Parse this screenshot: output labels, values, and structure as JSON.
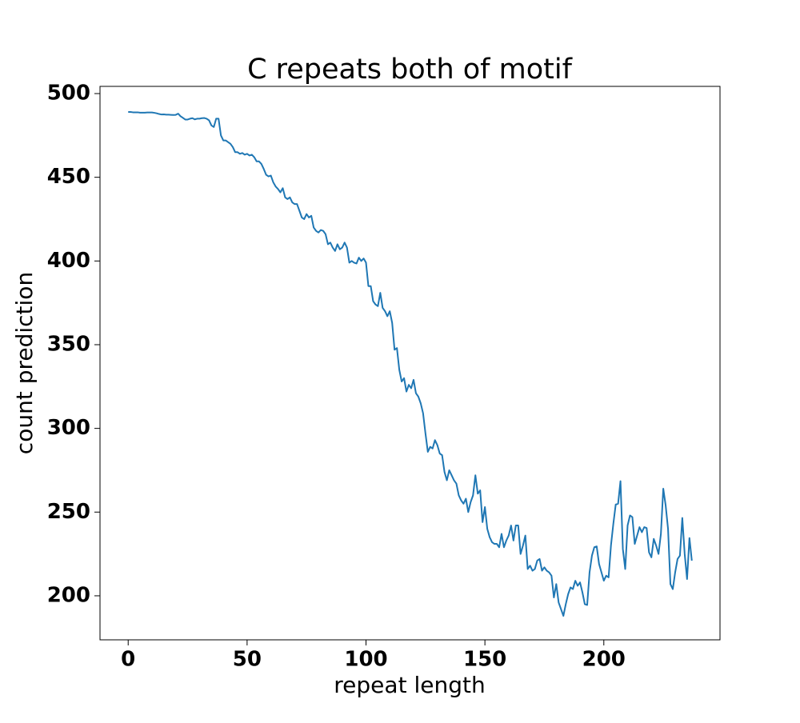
{
  "chart_data": {
    "type": "line",
    "title": "C repeats both of motif",
    "xlabel": "repeat length",
    "ylabel": "count prediction",
    "color": "#1f77b4",
    "x": [
      0,
      1,
      2,
      3,
      4,
      5,
      6,
      7,
      8,
      9,
      10,
      11,
      12,
      13,
      14,
      15,
      16,
      17,
      18,
      19,
      20,
      21,
      22,
      23,
      24,
      25,
      26,
      27,
      28,
      29,
      30,
      31,
      32,
      33,
      34,
      35,
      36,
      37,
      38,
      39,
      40,
      41,
      42,
      43,
      44,
      45,
      46,
      47,
      48,
      49,
      50,
      51,
      52,
      53,
      54,
      55,
      56,
      57,
      58,
      59,
      60,
      61,
      62,
      63,
      64,
      65,
      66,
      67,
      68,
      69,
      70,
      71,
      72,
      73,
      74,
      75,
      76,
      77,
      78,
      79,
      80,
      81,
      82,
      83,
      84,
      85,
      86,
      87,
      88,
      89,
      90,
      91,
      92,
      93,
      94,
      95,
      96,
      97,
      98,
      99,
      100,
      101,
      102,
      103,
      104,
      105,
      106,
      107,
      108,
      109,
      110,
      111,
      112,
      113,
      114,
      115,
      116,
      117,
      118,
      119,
      120,
      121,
      122,
      123,
      124,
      125,
      126,
      127,
      128,
      129,
      130,
      131,
      132,
      133,
      134,
      135,
      136,
      137,
      138,
      139,
      140,
      141,
      142,
      143,
      144,
      145,
      146,
      147,
      148,
      149,
      150,
      151,
      152,
      153,
      154,
      155,
      156,
      157,
      158,
      159,
      160,
      161,
      162,
      163,
      164,
      165,
      166,
      167,
      168,
      169,
      170,
      171,
      172,
      173,
      174,
      175,
      176,
      177,
      178,
      179,
      180,
      181,
      182,
      183,
      184,
      185,
      186,
      187,
      188,
      189,
      190,
      191,
      192,
      193,
      194,
      195,
      196,
      197,
      198,
      199,
      200,
      201,
      202,
      203,
      204,
      205,
      206,
      207,
      208,
      209,
      210,
      211,
      212,
      213,
      214,
      215,
      216,
      217,
      218,
      219,
      220,
      221,
      222,
      223,
      224,
      225,
      226,
      227,
      228,
      229,
      230,
      231,
      232,
      233,
      234,
      235,
      236,
      237
    ],
    "values": [
      489,
      489,
      488.8,
      488.8,
      488.8,
      488.6,
      488.6,
      488.6,
      488.7,
      488.7,
      488.7,
      488.5,
      488.2,
      487.8,
      487.5,
      487.6,
      487.4,
      487.4,
      487.3,
      487.2,
      487.3,
      488,
      486.5,
      485.5,
      484.5,
      484.5,
      485,
      485.3,
      484.6,
      485,
      485,
      485.3,
      485.4,
      485,
      484,
      481,
      480,
      485,
      485,
      475,
      472,
      472,
      471,
      470,
      468,
      465,
      465,
      464,
      464.5,
      463.5,
      464,
      463,
      463.5,
      462,
      459.5,
      459.5,
      458,
      455,
      451.5,
      450.5,
      451,
      447,
      444.5,
      443,
      441,
      443.5,
      438,
      437,
      438,
      435,
      434,
      434,
      430,
      426,
      425,
      428,
      426,
      427,
      420,
      418,
      417,
      418.5,
      418,
      416,
      410,
      411,
      408,
      406,
      410,
      407,
      408,
      411,
      408,
      399,
      400,
      399,
      398.5,
      402,
      400,
      401.5,
      399,
      385,
      385,
      376,
      374,
      373,
      381,
      372,
      370,
      367,
      370,
      363,
      347,
      348,
      335,
      328,
      330,
      322,
      326,
      324,
      329,
      321,
      319,
      315,
      309,
      297,
      286,
      289,
      288,
      293,
      290,
      285,
      284,
      274,
      269,
      275,
      272,
      269,
      267,
      260,
      257,
      255,
      258,
      250,
      256,
      260,
      272,
      261,
      263,
      244,
      253,
      240,
      235,
      232,
      231,
      231,
      229,
      237,
      229,
      233,
      236,
      242,
      233,
      242,
      242,
      225,
      230,
      236,
      216,
      218,
      215,
      216,
      221,
      222,
      215,
      217,
      215,
      214,
      212,
      199,
      207,
      196,
      192,
      188,
      195,
      201,
      205,
      204,
      209,
      206,
      208,
      202,
      195,
      194.5,
      214,
      224,
      229,
      229.5,
      219,
      214,
      209,
      212,
      211,
      230,
      243,
      254.5,
      255,
      268.5,
      228,
      216,
      242,
      248,
      247,
      231,
      236,
      241,
      238,
      241,
      240.5,
      226,
      223,
      234,
      230,
      225,
      237,
      264,
      254,
      240,
      207,
      204,
      214,
      222,
      224,
      246.5,
      225,
      210,
      234.5,
      221
    ],
    "xlim": [
      -11.85,
      248.85
    ],
    "xticks": [
      0,
      50,
      100,
      150,
      200
    ],
    "ylim": [
      173.7,
      504.3
    ],
    "yticks": [
      200,
      250,
      300,
      350,
      400,
      450,
      500
    ]
  }
}
